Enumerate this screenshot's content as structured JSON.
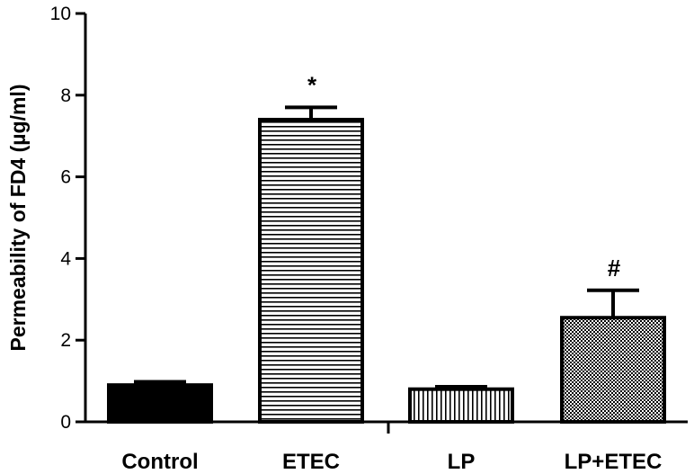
{
  "chart_data": {
    "type": "bar",
    "categories": [
      "Control",
      "ETEC",
      "LP",
      "LP+ETEC"
    ],
    "values": [
      0.9,
      7.4,
      0.8,
      2.55
    ],
    "error_upper": [
      0.98,
      7.7,
      0.86,
      3.22
    ],
    "annotations": [
      "",
      "*",
      "",
      "#"
    ],
    "patterns": [
      "solid",
      "horizontal-lines",
      "vertical-lines",
      "checkerboard"
    ],
    "ylabel": "Permeability of FD4 (µg/ml)",
    "xlabel": "",
    "title": "",
    "ylim": [
      0,
      10
    ],
    "yticks": [
      "0",
      "2",
      "4",
      "6",
      "8",
      "10"
    ],
    "ytick_values": [
      0,
      2,
      4,
      6,
      8,
      10
    ],
    "grid": false,
    "legend": "none",
    "bar_color": "#000000",
    "background": "#ffffff"
  }
}
